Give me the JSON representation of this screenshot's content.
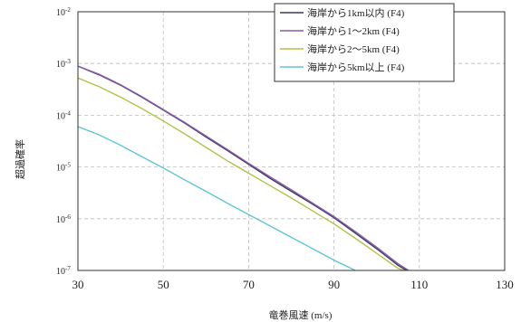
{
  "chart_data": {
    "type": "line",
    "xlabel": "竜巻風速 (m/s)",
    "ylabel": "超過確率",
    "xlim": [
      30,
      130
    ],
    "ylim_log10": [
      -7,
      -2
    ],
    "y_scale": "log",
    "grid": true,
    "legend_position": "top-right",
    "x_ticks": [
      "30",
      "50",
      "70",
      "90",
      "110",
      "130"
    ],
    "y_ticks": [
      {
        "base": "10",
        "exp": "-2"
      },
      {
        "base": "10",
        "exp": "-3"
      },
      {
        "base": "10",
        "exp": "-4"
      },
      {
        "base": "10",
        "exp": "-5"
      },
      {
        "base": "10",
        "exp": "-6"
      },
      {
        "base": "10",
        "exp": "-7"
      }
    ],
    "series": [
      {
        "name": "海岸から1km以内 (F4)",
        "color": "#3d3a5c",
        "x": [
          30,
          35,
          40,
          45,
          50,
          55,
          60,
          65,
          70,
          75,
          80,
          85,
          90,
          95,
          100,
          105,
          107
        ],
        "log10_y": [
          -3.05,
          -3.22,
          -3.42,
          -3.65,
          -3.9,
          -4.15,
          -4.42,
          -4.68,
          -4.95,
          -5.22,
          -5.47,
          -5.72,
          -5.98,
          -6.28,
          -6.58,
          -6.9,
          -7.0
        ]
      },
      {
        "name": "海岸から1～2km (F4)",
        "color": "#8a5aa8",
        "x": [
          30,
          35,
          40,
          45,
          50,
          55,
          60,
          65,
          70,
          75,
          80,
          85,
          90,
          95,
          100,
          105,
          107.5
        ],
        "log10_y": [
          -3.05,
          -3.21,
          -3.41,
          -3.64,
          -3.89,
          -4.14,
          -4.4,
          -4.66,
          -4.93,
          -5.19,
          -5.44,
          -5.7,
          -5.96,
          -6.25,
          -6.55,
          -6.87,
          -7.0
        ]
      },
      {
        "name": "海岸から2～5km (F4)",
        "color": "#b3c24a",
        "x": [
          30,
          35,
          40,
          45,
          50,
          55,
          60,
          65,
          70,
          75,
          80,
          85,
          90,
          95,
          100,
          105,
          106.5
        ],
        "log10_y": [
          -3.28,
          -3.45,
          -3.65,
          -3.87,
          -4.11,
          -4.36,
          -4.62,
          -4.88,
          -5.12,
          -5.36,
          -5.6,
          -5.85,
          -6.1,
          -6.38,
          -6.67,
          -6.96,
          -7.0
        ]
      },
      {
        "name": "海岸から5km以上 (F4)",
        "color": "#5ec6d6",
        "x": [
          30,
          35,
          40,
          45,
          50,
          55,
          60,
          65,
          70,
          75,
          80,
          85,
          90,
          95,
          96.5
        ],
        "log10_y": [
          -4.22,
          -4.38,
          -4.58,
          -4.8,
          -5.02,
          -5.25,
          -5.47,
          -5.7,
          -5.92,
          -6.14,
          -6.36,
          -6.58,
          -6.8,
          -7.0,
          -7.05
        ]
      }
    ]
  }
}
